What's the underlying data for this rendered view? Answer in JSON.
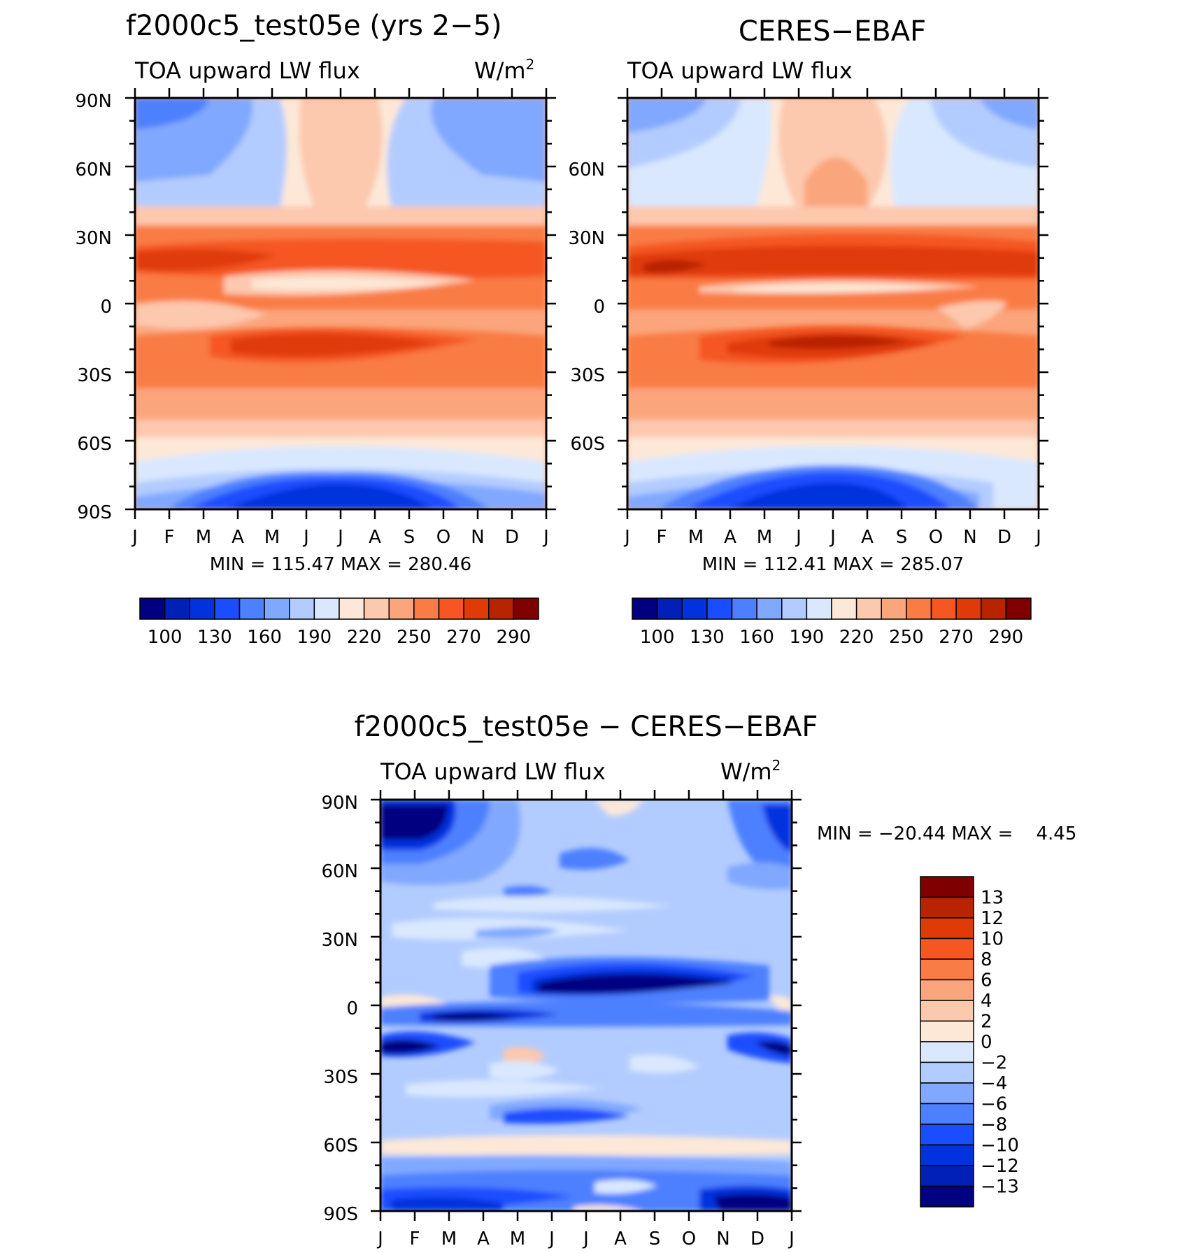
{
  "chart_data": [
    {
      "type": "heatmap",
      "title": "f2000c5_test05e (yrs 2−5)",
      "subtitle_left": "TOA upward LW flux",
      "units_base": "W/m",
      "units_exp": "2",
      "x_tick_labels": [
        "J",
        "F",
        "M",
        "A",
        "M",
        "J",
        "J",
        "A",
        "S",
        "O",
        "N",
        "D",
        "J"
      ],
      "y_tick_labels": [
        "90N",
        "60N",
        "30N",
        "0",
        "30S",
        "60S",
        "90S"
      ],
      "ylim": [
        -90,
        90
      ],
      "stats": "MIN =  115.47 MAX =  280.46",
      "min": 115.47,
      "max": 280.46,
      "colorbar_labels": [
        "100",
        "130",
        "160",
        "190",
        "220",
        "250",
        "270",
        "290"
      ]
    },
    {
      "type": "heatmap",
      "title": "CERES−EBAF",
      "subtitle_left": "TOA upward LW flux",
      "x_tick_labels": [
        "J",
        "F",
        "M",
        "A",
        "M",
        "J",
        "J",
        "A",
        "S",
        "O",
        "N",
        "D",
        "J"
      ],
      "y_tick_labels": [
        "60N",
        "30N",
        "0",
        "30S",
        "60S"
      ],
      "ylim": [
        -90,
        90
      ],
      "stats": "MIN =  112.41 MAX =  285.07",
      "min": 112.41,
      "max": 285.07,
      "colorbar_labels": [
        "100",
        "130",
        "160",
        "190",
        "220",
        "250",
        "270",
        "290"
      ]
    },
    {
      "type": "heatmap",
      "title": "f2000c5_test05e − CERES−EBAF",
      "subtitle_left": "TOA upward LW flux",
      "units_base": "W/m",
      "units_exp": "2",
      "x_tick_labels": [
        "J",
        "F",
        "M",
        "A",
        "M",
        "J",
        "J",
        "A",
        "S",
        "O",
        "N",
        "D",
        "J"
      ],
      "y_tick_labels": [
        "90N",
        "60N",
        "30N",
        "0",
        "30S",
        "60S",
        "90S"
      ],
      "ylim": [
        -90,
        90
      ],
      "stats": "MIN = −20.44 MAX =    4.45",
      "min": -20.44,
      "max": 4.45,
      "colorbar_labels": [
        "13",
        "12",
        "10",
        "8",
        "6",
        "4",
        "2",
        "0",
        "−2",
        "−4",
        "−6",
        "−8",
        "−10",
        "−12",
        "−13"
      ]
    }
  ],
  "colors": {
    "abs_scale": [
      "#000080",
      "#0020b8",
      "#0033dd",
      "#1a4dff",
      "#4d80ff",
      "#80a8ff",
      "#b3ccff",
      "#d9e8ff",
      "#fde8d8",
      "#fcc8ae",
      "#fba57c",
      "#f97c45",
      "#f55622",
      "#e03b07",
      "#b82400",
      "#800000"
    ],
    "diff_scale": [
      "#800000",
      "#b82400",
      "#e03b07",
      "#f55622",
      "#f97c45",
      "#fba57c",
      "#fcc8ae",
      "#fde8d8",
      "#d9e8ff",
      "#b3ccff",
      "#80a8ff",
      "#4d80ff",
      "#1a4dff",
      "#0033dd",
      "#0020b8",
      "#000080"
    ]
  }
}
